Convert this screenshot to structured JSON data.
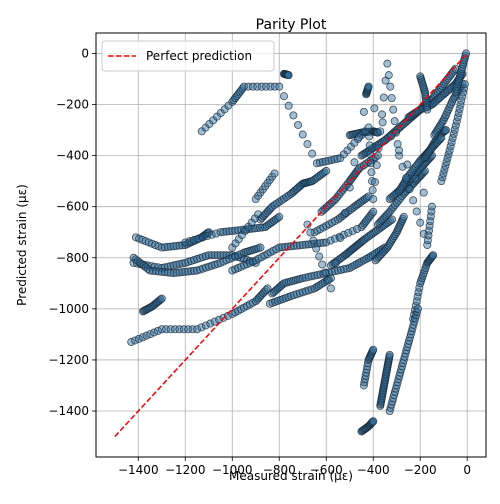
{
  "chart_data": {
    "type": "scatter",
    "title": "Parity Plot",
    "xlabel": "Measured strain (με)",
    "ylabel": "Predicted strain (με)",
    "xlim": [
      -1580,
      80
    ],
    "ylim": [
      -1580,
      80
    ],
    "xticks": [
      -1400,
      -1200,
      -1000,
      -800,
      -600,
      -400,
      -200,
      0
    ],
    "yticks": [
      -1400,
      -1200,
      -1000,
      -800,
      -600,
      -400,
      -200,
      0
    ],
    "xtick_labels": [
      "−1400",
      "−1200",
      "−1000",
      "−800",
      "−600",
      "−400",
      "−200",
      "0"
    ],
    "ytick_labels": [
      "−1400",
      "−1200",
      "−1000",
      "−800",
      "−600",
      "−400",
      "−200",
      "0"
    ],
    "grid": true,
    "legend_position": "top-left",
    "colors": {
      "marker_fill": "#2f6e9e",
      "marker_edge": "#1b2c3c",
      "reference_line": "#ff0000"
    },
    "reference_line": {
      "name": "Perfect prediction",
      "style": "dashed",
      "x": [
        -1500,
        0
      ],
      "y": [
        -1500,
        0
      ]
    },
    "scatter_series": {
      "point_groups": [
        {
          "x": [
            -1410,
            -1300,
            -1200,
            -1130,
            -1100
          ],
          "y": [
            -720,
            -760,
            -750,
            -720,
            -700
          ]
        },
        {
          "x": [
            -1420,
            -1300,
            -1200,
            -1100,
            -1000,
            -900
          ],
          "y": [
            -820,
            -840,
            -820,
            -790,
            -790,
            -820
          ]
        },
        {
          "x": [
            -1420,
            -1350,
            -1250,
            -1150,
            -1050,
            -950,
            -880
          ],
          "y": [
            -800,
            -850,
            -860,
            -850,
            -820,
            -780,
            -760
          ]
        },
        {
          "x": [
            -1380,
            -1340,
            -1300
          ],
          "y": [
            -1010,
            -990,
            -960
          ]
        },
        {
          "x": [
            -1430,
            -1300,
            -1150,
            -1000,
            -900,
            -850
          ],
          "y": [
            -1130,
            -1080,
            -1080,
            -1020,
            -970,
            -920
          ]
        },
        {
          "x": [
            -1200,
            -1050,
            -950,
            -860,
            -800
          ],
          "y": [
            -740,
            -700,
            -690,
            -680,
            -640
          ]
        },
        {
          "x": [
            -1000,
            -900,
            -800,
            -700,
            -600,
            -450,
            -400
          ],
          "y": [
            -850,
            -810,
            -760,
            -750,
            -740,
            -680,
            -620
          ]
        },
        {
          "x": [
            -830,
            -780,
            -700,
            -600,
            -500,
            -420,
            -350
          ],
          "y": [
            -940,
            -900,
            -880,
            -860,
            -840,
            -800,
            -760
          ]
        },
        {
          "x": [
            -840,
            -750,
            -650,
            -580
          ],
          "y": [
            -980,
            -950,
            -920,
            -880
          ]
        },
        {
          "x": [
            -900,
            -820
          ],
          "y": [
            -570,
            -470
          ]
        },
        {
          "x": [
            -1000,
            -890
          ],
          "y": [
            -760,
            -630
          ]
        },
        {
          "x": [
            -880,
            -830,
            -750,
            -700,
            -660,
            -600
          ],
          "y": [
            -650,
            -600,
            -550,
            -510,
            -500,
            -460
          ]
        },
        {
          "x": [
            -620,
            -560,
            -500,
            -460,
            -380
          ],
          "y": [
            -620,
            -570,
            -500,
            -450,
            -400
          ]
        },
        {
          "x": [
            -650,
            -550,
            -480,
            -420
          ],
          "y": [
            -700,
            -650,
            -600,
            -560
          ]
        },
        {
          "x": [
            -580,
            -520,
            -480,
            -440,
            -380,
            -320
          ],
          "y": [
            -830,
            -790,
            -760,
            -730,
            -690,
            -650
          ]
        },
        {
          "x": [
            -500,
            -450,
            -400,
            -380
          ],
          "y": [
            -320,
            -310,
            -305,
            -310
          ]
        },
        {
          "x": [
            -390,
            -340,
            -300,
            -270
          ],
          "y": [
            -810,
            -760,
            -700,
            -640
          ]
        },
        {
          "x": [
            -380,
            -330,
            -270,
            -220,
            -180
          ],
          "y": [
            -670,
            -620,
            -550,
            -500,
            -460
          ]
        },
        {
          "x": [
            -330,
            -280,
            -230,
            -190,
            -150
          ],
          "y": [
            -570,
            -530,
            -480,
            -440,
            -400
          ]
        },
        {
          "x": [
            -290,
            -250,
            -200,
            -160,
            -120,
            -90
          ],
          "y": [
            -540,
            -480,
            -420,
            -380,
            -320,
            -300
          ]
        },
        {
          "x": [
            -450,
            -400,
            -350,
            -300,
            -250,
            -200,
            -150,
            -100,
            -50
          ],
          "y": [
            -400,
            -370,
            -340,
            -300,
            -260,
            -220,
            -180,
            -120,
            -60
          ]
        },
        {
          "x": [
            -180,
            -150,
            -110
          ],
          "y": [
            -410,
            -370,
            -330
          ]
        },
        {
          "x": [
            -250,
            -200,
            -150,
            -100,
            -50,
            -20
          ],
          "y": [
            -250,
            -220,
            -200,
            -160,
            -120,
            -80
          ]
        },
        {
          "x": [
            -200,
            -180,
            -170
          ],
          "y": [
            -90,
            -150,
            -220
          ]
        },
        {
          "x": [
            -140,
            -100,
            -60,
            -20
          ],
          "y": [
            -320,
            -260,
            -180,
            -120
          ]
        },
        {
          "x": [
            -110,
            -75,
            -40,
            -10
          ],
          "y": [
            -500,
            -380,
            -250,
            -120
          ]
        },
        {
          "x": [
            -50,
            -25,
            -5
          ],
          "y": [
            -150,
            -70,
            0
          ]
        },
        {
          "x": [
            -230,
            -200,
            -170,
            -145
          ],
          "y": [
            -1040,
            -900,
            -820,
            -790
          ]
        },
        {
          "x": [
            -330,
            -300,
            -270,
            -240,
            -210
          ],
          "y": [
            -1400,
            -1300,
            -1200,
            -1100,
            -1000
          ]
        },
        {
          "x": [
            -450,
            -420,
            -400
          ],
          "y": [
            -1480,
            -1460,
            -1440
          ]
        },
        {
          "x": [
            -440,
            -420,
            -400
          ],
          "y": [
            -1300,
            -1200,
            -1160
          ]
        },
        {
          "x": [
            -370,
            -360,
            -350,
            -340,
            -330
          ],
          "y": [
            -1380,
            -1330,
            -1280,
            -1230,
            -1180
          ]
        },
        {
          "x": [
            -780,
            -760
          ],
          "y": [
            -80,
            -85
          ]
        },
        {
          "x": [
            -1130,
            -1000,
            -950,
            -800,
            -640,
            -540,
            -420,
            -400,
            -340,
            -290,
            -170,
            -150,
            -430,
            -420,
            -580,
            -680
          ],
          "y": [
            -305,
            -190,
            -130,
            -130,
            -430,
            -410,
            -290,
            -570,
            -40,
            -400,
            -750,
            -600,
            -160,
            -130,
            -920,
            -670
          ]
        }
      ]
    },
    "legend": [
      {
        "label": "Perfect prediction"
      }
    ]
  }
}
